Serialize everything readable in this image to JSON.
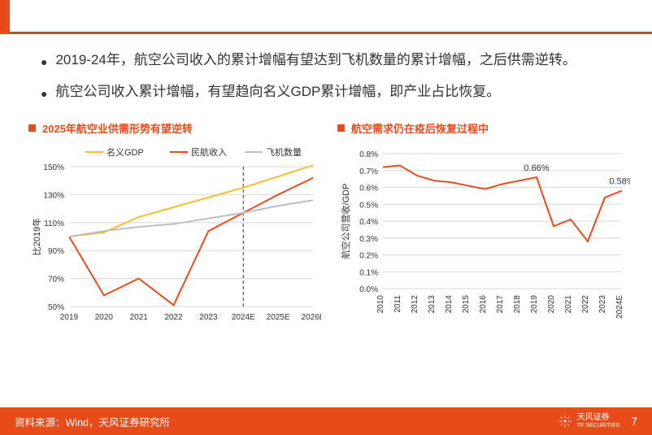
{
  "bullets": [
    "2019-24年，航空公司收入的累计增幅有望达到飞机数量的累计增幅，之后供需逆转。",
    "航空公司收入累计增幅，有望趋向名义GDP累计增幅，即产业占比恢复。"
  ],
  "chart_left": {
    "type": "line",
    "title": "2025年航空业供需形势有望逆转",
    "title_color": "#e84c1a",
    "title_fontsize": 13,
    "y_label": "比2019年",
    "y_label_fontsize": 11,
    "x_categories": [
      "2019",
      "2020",
      "2021",
      "2022",
      "2023",
      "2024E",
      "2025E",
      "2026E"
    ],
    "x_fontsize": 10,
    "ylim": [
      50,
      150
    ],
    "ytick_step": 20,
    "yticks": [
      "50%",
      "70%",
      "90%",
      "110%",
      "130%",
      "150%"
    ],
    "grid_color": "#d9d9d9",
    "background_color": "#ffffff",
    "legend": [
      "名义GDP",
      "民航收入",
      "飞机数量"
    ],
    "legend_fontsize": 11,
    "forecast_divider_x": "2024E",
    "forecast_divider_style": "dashed",
    "forecast_divider_color": "#333333",
    "line_width": 2,
    "series": [
      {
        "name": "名义GDP",
        "color": "#f5be2f",
        "values": [
          100,
          103,
          114,
          121,
          128,
          135,
          143,
          151
        ]
      },
      {
        "name": "民航收入",
        "color": "#e84c1a",
        "values": [
          100,
          58,
          70,
          51,
          104,
          117,
          130,
          142
        ]
      },
      {
        "name": "飞机数量",
        "color": "#bfbfbf",
        "values": [
          100,
          104,
          107,
          109,
          113,
          117,
          122,
          126
        ]
      }
    ]
  },
  "chart_right": {
    "type": "line",
    "title": "航空需求仍在疫后恢复过程中",
    "title_color": "#e84c1a",
    "title_fontsize": 13,
    "y_label": "航空公司营收/GDP",
    "y_label_fontsize": 11,
    "x_categories": [
      "2010",
      "2011",
      "2012",
      "2013",
      "2014",
      "2015",
      "2016",
      "2017",
      "2018",
      "2019",
      "2020",
      "2021",
      "2022",
      "2023",
      "2024E"
    ],
    "x_fontsize": 10,
    "x_rotate": -90,
    "ylim": [
      0.0,
      0.8
    ],
    "ytick_step": 0.1,
    "yticks": [
      "0.0%",
      "0.1%",
      "0.2%",
      "0.3%",
      "0.4%",
      "0.5%",
      "0.6%",
      "0.7%",
      "0.8%"
    ],
    "grid_color": "#d9d9d9",
    "background_color": "#ffffff",
    "line_width": 2,
    "series": [
      {
        "name": "航空公司营收/GDP",
        "color": "#e84c1a",
        "values": [
          0.72,
          0.73,
          0.67,
          0.64,
          0.63,
          0.61,
          0.59,
          0.62,
          0.64,
          0.66,
          0.37,
          0.41,
          0.28,
          0.54,
          0.58
        ]
      }
    ],
    "annotations": [
      {
        "x": "2019",
        "y": 0.66,
        "text": "0.66%",
        "fontsize": 11,
        "color": "#333333"
      },
      {
        "x": "2024E",
        "y": 0.58,
        "text": "0.58%",
        "fontsize": 11,
        "color": "#333333"
      }
    ]
  },
  "footer": {
    "source": "资料来源：Wind，天风证券研究所",
    "page_number": "7",
    "logo_text_cn": "天风证券",
    "logo_text_en": "TF SECURITIES"
  },
  "colors": {
    "brand_orange": "#e84c1a",
    "top_border": "#a35b35",
    "text": "#333333"
  }
}
